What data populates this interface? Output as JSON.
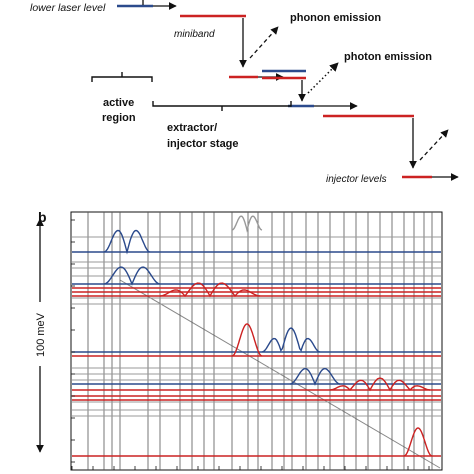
{
  "panel_a": {
    "labels": {
      "lower_laser_level": "lower laser level",
      "miniband": "miniband",
      "phonon_emission": "phonon emission",
      "photon_emission": "photon emission",
      "active_region_line1": "active",
      "active_region_line2": "region",
      "extractor_line1": "extractor/",
      "extractor_line2": "injector stage",
      "injector_levels": "injector levels"
    }
  },
  "panel_b": {
    "label": "b",
    "y_axis_label": "100 meV"
  },
  "colors": {
    "blue_level": "#2b4a8c",
    "red_level": "#cc2222",
    "gray_line": "#9a9a9a",
    "dark_line": "#222222"
  }
}
